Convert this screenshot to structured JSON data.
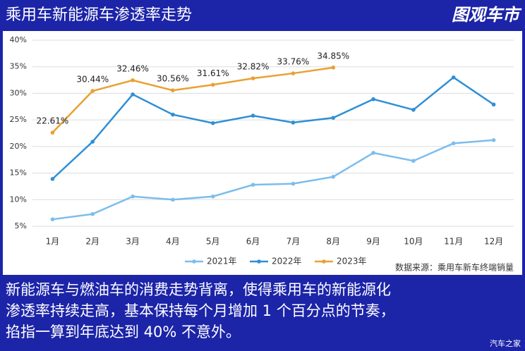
{
  "header": {
    "logo": "图观车市"
  },
  "caption": [
    "新能源车与燃油车的消费走势背离，使得乘用车的新能源化",
    "渗透率持续走高，基本保持每个月增加 1 个百分点的节奏，",
    "掐指一算到年底达到 40% 不意外。"
  ],
  "watermark": "汽车之家",
  "chart_data": {
    "type": "line",
    "title": "乘用车新能源车渗透率走势",
    "source": "数据来源：乘用车新车终端销量",
    "categories": [
      "1月",
      "2月",
      "3月",
      "4月",
      "5月",
      "6月",
      "7月",
      "8月",
      "9月",
      "10月",
      "11月",
      "12月"
    ],
    "series": [
      {
        "name": "2021年",
        "color": "#7cbdec",
        "values": [
          6.3,
          7.3,
          10.6,
          10.0,
          10.6,
          12.8,
          13.0,
          14.3,
          18.8,
          17.3,
          20.6,
          21.2
        ]
      },
      {
        "name": "2022年",
        "color": "#2f8fd6",
        "values": [
          13.9,
          20.9,
          29.8,
          26.0,
          24.4,
          25.8,
          24.5,
          25.4,
          28.9,
          26.9,
          33.0,
          27.9
        ]
      },
      {
        "name": "2023年",
        "color": "#e8a133",
        "values": [
          22.61,
          30.44,
          32.46,
          30.56,
          31.61,
          32.82,
          33.76,
          34.85,
          null,
          null,
          null,
          null
        ],
        "value_labels": [
          "22.61%",
          "30.44%",
          "32.46%",
          "30.56%",
          "31.61%",
          "32.82%",
          "33.76%",
          "34.85%",
          null,
          null,
          null,
          null
        ]
      }
    ],
    "ylim": [
      5,
      40
    ],
    "yticks": [
      {
        "value": 5,
        "label": "5%"
      },
      {
        "value": 10,
        "label": "10%"
      },
      {
        "value": 15,
        "label": "15%"
      },
      {
        "value": 20,
        "label": "20%"
      },
      {
        "value": 25,
        "label": "25%"
      },
      {
        "value": 30,
        "label": "30%"
      },
      {
        "value": 35,
        "label": "35%"
      },
      {
        "value": 40,
        "label": "40%"
      }
    ],
    "grid": true,
    "legend": "bottom"
  }
}
